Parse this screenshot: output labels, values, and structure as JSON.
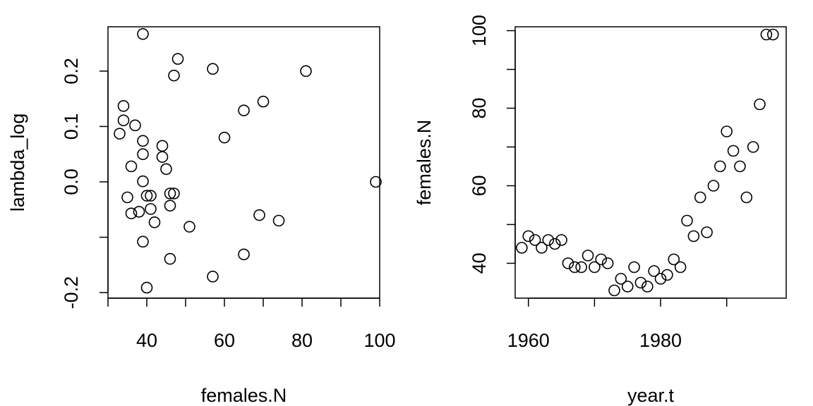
{
  "chart_data": [
    {
      "type": "scatter",
      "xlabel": "females.N",
      "ylabel": "lambda_log",
      "xlim": [
        30,
        100
      ],
      "ylim": [
        -0.21,
        0.28
      ],
      "xticks": [
        30,
        40,
        50,
        60,
        70,
        80,
        90,
        100
      ],
      "xtick_labels": [
        null,
        "40",
        null,
        "60",
        null,
        "80",
        null,
        "100"
      ],
      "yticks": [
        -0.2,
        -0.1,
        0.0,
        0.1,
        0.2
      ],
      "ytick_labels": [
        "-0.2",
        null,
        "0.0",
        "0.1",
        "0.2"
      ],
      "points": [
        {
          "x": 39,
          "y": 0.267
        },
        {
          "x": 48,
          "y": 0.222
        },
        {
          "x": 57,
          "y": 0.204
        },
        {
          "x": 47,
          "y": 0.192
        },
        {
          "x": 81,
          "y": 0.2
        },
        {
          "x": 34,
          "y": 0.137
        },
        {
          "x": 70,
          "y": 0.145
        },
        {
          "x": 65,
          "y": 0.129
        },
        {
          "x": 34,
          "y": 0.111
        },
        {
          "x": 37,
          "y": 0.102
        },
        {
          "x": 33,
          "y": 0.087
        },
        {
          "x": 60,
          "y": 0.08
        },
        {
          "x": 39,
          "y": 0.074
        },
        {
          "x": 44,
          "y": 0.065
        },
        {
          "x": 39,
          "y": 0.05
        },
        {
          "x": 44,
          "y": 0.045
        },
        {
          "x": 36,
          "y": 0.028
        },
        {
          "x": 45,
          "y": 0.023
        },
        {
          "x": 39,
          "y": 0.001
        },
        {
          "x": 99,
          "y": 0.0
        },
        {
          "x": 46,
          "y": -0.021
        },
        {
          "x": 47,
          "y": -0.021
        },
        {
          "x": 40,
          "y": -0.025
        },
        {
          "x": 41,
          "y": -0.025
        },
        {
          "x": 35,
          "y": -0.028
        },
        {
          "x": 46,
          "y": -0.043
        },
        {
          "x": 41,
          "y": -0.049
        },
        {
          "x": 38,
          "y": -0.054
        },
        {
          "x": 36,
          "y": -0.057
        },
        {
          "x": 69,
          "y": -0.06
        },
        {
          "x": 74,
          "y": -0.07
        },
        {
          "x": 42,
          "y": -0.073
        },
        {
          "x": 51,
          "y": -0.081
        },
        {
          "x": 39,
          "y": -0.108
        },
        {
          "x": 65,
          "y": -0.131
        },
        {
          "x": 46,
          "y": -0.139
        },
        {
          "x": 57,
          "y": -0.171
        },
        {
          "x": 40,
          "y": -0.191
        }
      ]
    },
    {
      "type": "scatter",
      "xlabel": "year.t",
      "ylabel": "females.N",
      "xlim": [
        1958,
        1999
      ],
      "ylim": [
        31,
        101
      ],
      "xticks": [
        1960,
        1970,
        1980,
        1990
      ],
      "xtick_labels": [
        "1960",
        null,
        "1980",
        null
      ],
      "yticks": [
        40,
        50,
        60,
        70,
        80,
        90,
        100
      ],
      "ytick_labels": [
        "40",
        null,
        "60",
        null,
        "80",
        null,
        "100"
      ],
      "points": [
        {
          "x": 1959,
          "y": 44
        },
        {
          "x": 1960,
          "y": 47
        },
        {
          "x": 1961,
          "y": 46
        },
        {
          "x": 1962,
          "y": 44
        },
        {
          "x": 1963,
          "y": 46
        },
        {
          "x": 1964,
          "y": 45
        },
        {
          "x": 1965,
          "y": 46
        },
        {
          "x": 1966,
          "y": 40
        },
        {
          "x": 1967,
          "y": 39
        },
        {
          "x": 1968,
          "y": 39
        },
        {
          "x": 1969,
          "y": 42
        },
        {
          "x": 1970,
          "y": 39
        },
        {
          "x": 1971,
          "y": 41
        },
        {
          "x": 1972,
          "y": 40
        },
        {
          "x": 1973,
          "y": 33
        },
        {
          "x": 1974,
          "y": 36
        },
        {
          "x": 1975,
          "y": 34
        },
        {
          "x": 1976,
          "y": 39
        },
        {
          "x": 1977,
          "y": 35
        },
        {
          "x": 1978,
          "y": 34
        },
        {
          "x": 1979,
          "y": 38
        },
        {
          "x": 1980,
          "y": 36
        },
        {
          "x": 1981,
          "y": 37
        },
        {
          "x": 1982,
          "y": 41
        },
        {
          "x": 1983,
          "y": 39
        },
        {
          "x": 1984,
          "y": 51
        },
        {
          "x": 1985,
          "y": 47
        },
        {
          "x": 1986,
          "y": 57
        },
        {
          "x": 1987,
          "y": 48
        },
        {
          "x": 1988,
          "y": 60
        },
        {
          "x": 1989,
          "y": 65
        },
        {
          "x": 1990,
          "y": 74
        },
        {
          "x": 1991,
          "y": 69
        },
        {
          "x": 1992,
          "y": 65
        },
        {
          "x": 1993,
          "y": 57
        },
        {
          "x": 1994,
          "y": 70
        },
        {
          "x": 1995,
          "y": 81
        },
        {
          "x": 1996,
          "y": 99
        },
        {
          "x": 1997,
          "y": 99
        }
      ]
    }
  ]
}
